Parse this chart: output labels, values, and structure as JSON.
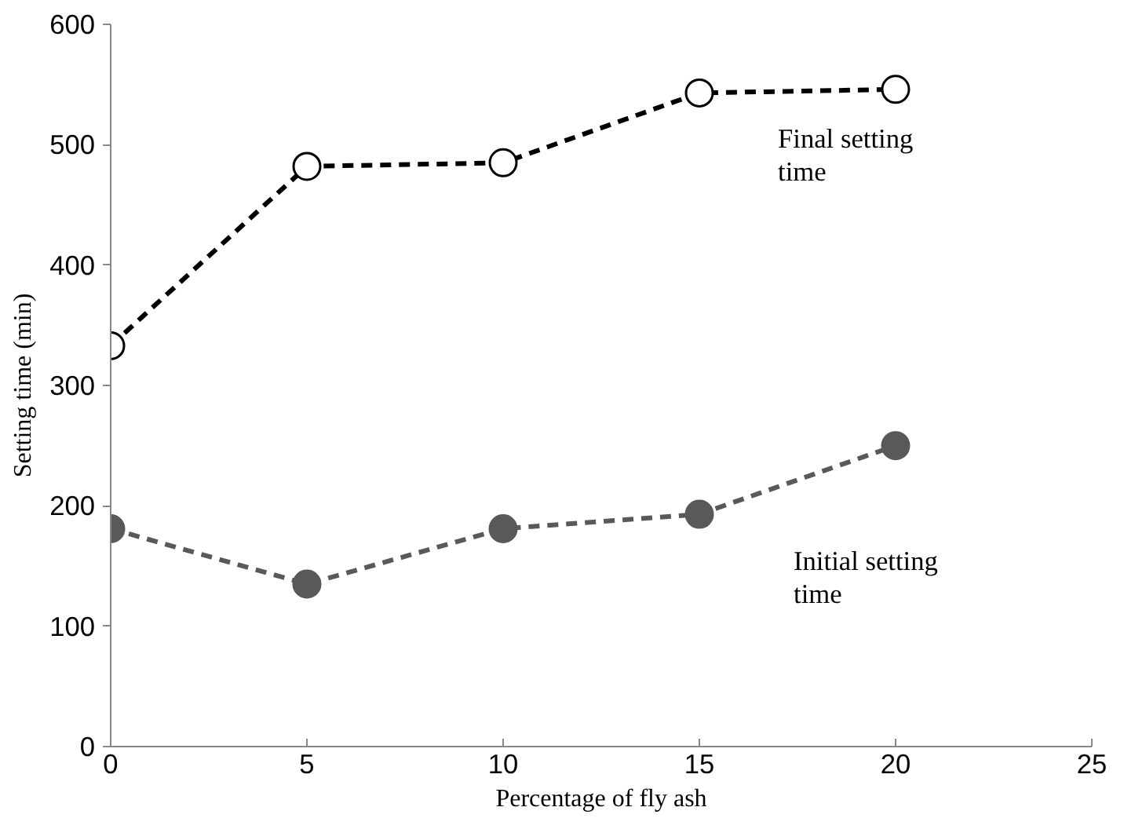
{
  "chart_data": {
    "type": "line",
    "xlabel": "Percentage of fly ash",
    "ylabel": "Setting time (min)",
    "x": [
      0,
      5,
      10,
      15,
      20
    ],
    "series": [
      {
        "name": "Final setting time",
        "color": "#000000",
        "values": [
          333,
          482,
          485,
          543,
          546
        ]
      },
      {
        "name": "Initial setting time",
        "color": "#595959",
        "values": [
          181,
          135,
          181,
          193,
          250
        ]
      }
    ],
    "xlim": [
      0,
      25
    ],
    "xticks": [
      0,
      5,
      10,
      15,
      20,
      25
    ],
    "ylim": [
      0,
      600
    ],
    "yticks": [
      0,
      100,
      200,
      300,
      400,
      500,
      600
    ],
    "grid": false,
    "marker": "circle",
    "line_style": "dashed"
  }
}
